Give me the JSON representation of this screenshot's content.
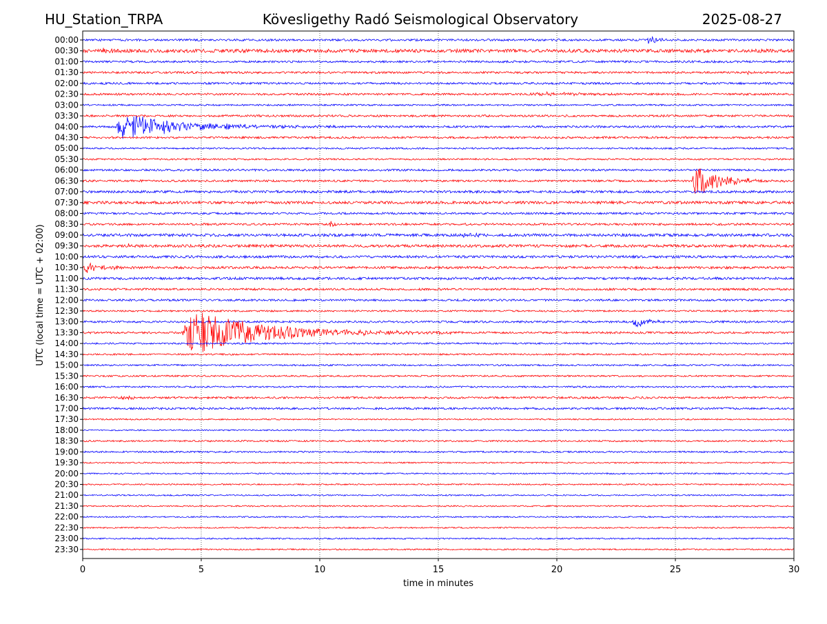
{
  "chart_data": {
    "type": "line",
    "header_left": "HU_Station_TRPA",
    "title": "Kövesligethy Radó Seismological Observatory",
    "header_right": "2025-08-27",
    "xlabel": "time in minutes",
    "ylabel": "UTC (local time = UTC + 02:00)",
    "xlim": [
      0,
      30
    ],
    "x_ticks": [
      0,
      5,
      10,
      15,
      20,
      25,
      30
    ],
    "grid": "vertical dotted",
    "trace_colors": [
      "#0000ff",
      "#ff0000"
    ],
    "rows": [
      "00:00",
      "00:30",
      "01:00",
      "01:30",
      "02:00",
      "02:30",
      "03:00",
      "03:30",
      "04:00",
      "04:30",
      "05:00",
      "05:30",
      "06:00",
      "06:30",
      "07:00",
      "07:30",
      "08:00",
      "08:30",
      "09:00",
      "09:30",
      "10:00",
      "10:30",
      "11:00",
      "11:30",
      "12:00",
      "12:30",
      "13:00",
      "13:30",
      "14:00",
      "14:30",
      "15:00",
      "15:30",
      "16:00",
      "16:30",
      "17:00",
      "17:30",
      "18:00",
      "18:30",
      "19:00",
      "19:30",
      "20:00",
      "20:30",
      "21:00",
      "21:30",
      "22:00",
      "22:30",
      "23:00",
      "23:30"
    ],
    "noise_level": [
      1.5,
      2.5,
      1.5,
      1.5,
      1.5,
      1.5,
      1.2,
      1.5,
      1.5,
      1.5,
      1.2,
      1.2,
      1.5,
      1.5,
      1.8,
      2.0,
      1.5,
      1.5,
      2.0,
      2.0,
      1.8,
      1.8,
      1.8,
      1.5,
      1.5,
      1.2,
      1.5,
      1.5,
      1.2,
      1.2,
      1.2,
      1.2,
      1.2,
      1.5,
      1.5,
      1.0,
      1.0,
      1.2,
      1.2,
      1.0,
      1.0,
      1.0,
      1.0,
      1.0,
      1.0,
      1.0,
      1.0,
      1.0
    ],
    "events": [
      {
        "row": "00:00",
        "t": 23.8,
        "amp": 8,
        "duration": 1.5
      },
      {
        "row": "00:30",
        "t": 0.8,
        "amp": 4,
        "duration": 1.5
      },
      {
        "row": "01:30",
        "t": 28.0,
        "amp": 3,
        "duration": 1.0
      },
      {
        "row": "02:30",
        "t": 18.8,
        "amp": 4,
        "duration": 5.5
      },
      {
        "row": "04:00",
        "t": 1.35,
        "amp": 22,
        "duration": 10.0
      },
      {
        "row": "06:30",
        "t": 25.7,
        "amp": 28,
        "duration": 4.0
      },
      {
        "row": "08:30",
        "t": 10.4,
        "amp": 6,
        "duration": 1.0
      },
      {
        "row": "09:00",
        "t": 16.0,
        "amp": 3,
        "duration": 4.0
      },
      {
        "row": "09:30",
        "t": 1.8,
        "amp": 3,
        "duration": 1.5
      },
      {
        "row": "10:30",
        "t": 0.0,
        "amp": 9,
        "duration": 3.5
      },
      {
        "row": "11:00",
        "t": 15.3,
        "amp": 3,
        "duration": 2.0
      },
      {
        "row": "13:00",
        "t": 23.2,
        "amp": 10,
        "duration": 2.5
      },
      {
        "row": "13:30",
        "t": 4.2,
        "amp": 38,
        "duration": 12.0
      },
      {
        "row": "16:30",
        "t": 1.6,
        "amp": 3,
        "duration": 2.0
      }
    ]
  }
}
